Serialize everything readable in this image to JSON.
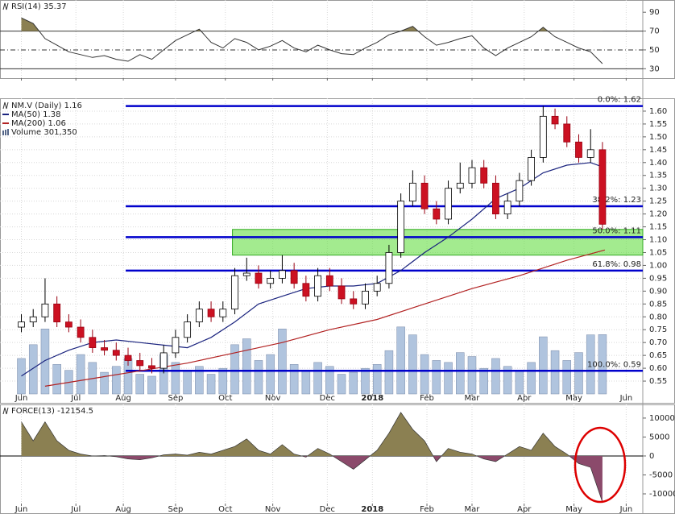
{
  "chart_data": [
    {
      "type": "line",
      "title": "RSI(14) 35.37",
      "color": "#333333",
      "fill_above": 70,
      "fill_color": "#8b8052",
      "x": [
        0,
        5,
        10,
        15,
        20,
        25,
        30,
        35,
        40,
        45,
        50,
        55,
        60,
        65,
        70,
        75,
        80,
        85,
        90,
        95,
        100,
        105,
        110,
        115,
        120,
        125,
        130,
        135,
        140,
        145,
        150,
        155,
        160,
        165,
        170,
        175,
        180,
        185,
        190,
        195,
        200,
        205,
        210,
        215,
        220,
        225,
        230,
        235,
        240,
        245
      ],
      "values": [
        84,
        78,
        62,
        55,
        48,
        45,
        42,
        44,
        40,
        38,
        45,
        40,
        50,
        60,
        66,
        72,
        58,
        52,
        62,
        58,
        50,
        54,
        60,
        52,
        48,
        55,
        50,
        46,
        45,
        52,
        58,
        66,
        70,
        75,
        64,
        55,
        58,
        62,
        65,
        52,
        44,
        52,
        58,
        64,
        74,
        64,
        58,
        52,
        48,
        35.37
      ],
      "levels": [
        {
          "value": 70,
          "style": "solid"
        },
        {
          "value": 50,
          "style": "dashdot"
        },
        {
          "value": 30,
          "style": "solid"
        }
      ],
      "xlim": [
        -9,
        262
      ],
      "ylim": [
        20,
        103
      ],
      "yticks": [
        30,
        50,
        70,
        90
      ]
    },
    {
      "type": "candlestick",
      "title": "NM.V (Daily) 1.16",
      "x": [
        0,
        5,
        10,
        15,
        20,
        25,
        30,
        35,
        40,
        45,
        50,
        55,
        60,
        65,
        70,
        75,
        80,
        85,
        90,
        95,
        100,
        105,
        110,
        115,
        120,
        125,
        130,
        135,
        140,
        145,
        150,
        155,
        160,
        165,
        170,
        175,
        180,
        185,
        190,
        195,
        200,
        205,
        210,
        215,
        220,
        225,
        230,
        235,
        240,
        245
      ],
      "open": [
        0.76,
        0.78,
        0.8,
        0.85,
        0.78,
        0.76,
        0.72,
        0.68,
        0.67,
        0.65,
        0.63,
        0.61,
        0.6,
        0.66,
        0.72,
        0.78,
        0.83,
        0.8,
        0.83,
        0.96,
        0.97,
        0.93,
        0.95,
        0.98,
        0.93,
        0.88,
        0.96,
        0.92,
        0.87,
        0.85,
        0.9,
        0.93,
        1.05,
        1.25,
        1.32,
        1.22,
        1.18,
        1.3,
        1.32,
        1.38,
        1.32,
        1.2,
        1.25,
        1.33,
        1.42,
        1.58,
        1.55,
        1.48,
        1.42,
        1.45
      ],
      "high": [
        0.81,
        0.83,
        0.95,
        0.88,
        0.81,
        0.79,
        0.75,
        0.71,
        0.7,
        0.68,
        0.66,
        0.64,
        0.69,
        0.75,
        0.81,
        0.86,
        0.86,
        0.86,
        0.99,
        1.03,
        1.0,
        0.98,
        1.04,
        1.01,
        0.96,
        0.99,
        0.99,
        0.95,
        0.9,
        0.93,
        0.96,
        1.08,
        1.28,
        1.37,
        1.35,
        1.25,
        1.33,
        1.4,
        1.41,
        1.41,
        1.35,
        1.28,
        1.36,
        1.45,
        1.62,
        1.61,
        1.58,
        1.51,
        1.53,
        1.48
      ],
      "low": [
        0.74,
        0.76,
        0.78,
        0.76,
        0.74,
        0.7,
        0.66,
        0.65,
        0.63,
        0.61,
        0.59,
        0.58,
        0.58,
        0.64,
        0.7,
        0.76,
        0.78,
        0.78,
        0.81,
        0.94,
        0.91,
        0.91,
        0.93,
        0.91,
        0.86,
        0.86,
        0.9,
        0.85,
        0.83,
        0.83,
        0.88,
        0.91,
        1.03,
        1.23,
        1.2,
        1.16,
        1.16,
        1.28,
        1.3,
        1.3,
        1.18,
        1.18,
        1.23,
        1.31,
        1.4,
        1.53,
        1.46,
        1.4,
        1.4,
        1.14
      ],
      "close": [
        0.78,
        0.8,
        0.85,
        0.78,
        0.76,
        0.72,
        0.68,
        0.67,
        0.65,
        0.63,
        0.61,
        0.6,
        0.66,
        0.72,
        0.78,
        0.83,
        0.8,
        0.83,
        0.96,
        0.97,
        0.93,
        0.95,
        0.98,
        0.93,
        0.88,
        0.96,
        0.92,
        0.87,
        0.85,
        0.9,
        0.93,
        1.05,
        1.25,
        1.32,
        1.22,
        1.18,
        1.3,
        1.32,
        1.38,
        1.32,
        1.2,
        1.25,
        1.33,
        1.42,
        1.58,
        1.55,
        1.48,
        1.42,
        1.45,
        1.16
      ],
      "up_color": "#ffffff",
      "down_color": "#cc1122",
      "volume": {
        "name": "Volume 301,350",
        "color": "#b0c4de",
        "vlim": [
          0,
          1500000
        ],
        "values": [
          180000,
          250000,
          330000,
          150000,
          120000,
          200000,
          160000,
          110000,
          140000,
          180000,
          100000,
          90000,
          200000,
          160000,
          120000,
          140000,
          100000,
          130000,
          250000,
          280000,
          170000,
          200000,
          330000,
          150000,
          120000,
          160000,
          140000,
          100000,
          110000,
          130000,
          150000,
          220000,
          340000,
          300000,
          200000,
          170000,
          160000,
          210000,
          190000,
          130000,
          180000,
          140000,
          120000,
          160000,
          290000,
          220000,
          170000,
          210000,
          300000,
          301350
        ]
      },
      "series": [
        {
          "name": "MA(50) 1.38",
          "color": "#1a237e",
          "x": [
            0,
            10,
            20,
            30,
            40,
            50,
            60,
            70,
            80,
            90,
            100,
            110,
            120,
            130,
            140,
            150,
            160,
            170,
            180,
            190,
            200,
            210,
            220,
            230,
            240,
            246
          ],
          "values": [
            0.57,
            0.63,
            0.67,
            0.7,
            0.71,
            0.7,
            0.69,
            0.68,
            0.72,
            0.78,
            0.85,
            0.88,
            0.91,
            0.92,
            0.92,
            0.93,
            0.98,
            1.05,
            1.11,
            1.18,
            1.26,
            1.3,
            1.36,
            1.39,
            1.4,
            1.38
          ]
        },
        {
          "name": "MA(200) 1.06",
          "color": "#b22222",
          "x": [
            10,
            30,
            50,
            70,
            90,
            110,
            130,
            150,
            170,
            190,
            210,
            230,
            246
          ],
          "values": [
            0.53,
            0.56,
            0.59,
            0.62,
            0.66,
            0.7,
            0.75,
            0.79,
            0.85,
            0.91,
            0.96,
            1.02,
            1.06
          ]
        }
      ],
      "fib_start": 44,
      "fib_color": "#0000cc",
      "fib": [
        {
          "value": 1.62,
          "label": "0.0%: 1.62"
        },
        {
          "value": 1.23,
          "label": "38.2%: 1.23"
        },
        {
          "value": 1.11,
          "label": "50.0%: 1.11"
        },
        {
          "value": 0.98,
          "label": "61.8%: 0.98"
        },
        {
          "value": 0.59,
          "label": "100.0%: 0.59"
        }
      ],
      "zone": {
        "x": [
          89,
          262
        ],
        "y": [
          1.04,
          1.14
        ],
        "color": "#66dd44"
      },
      "xlim": [
        -9,
        262
      ],
      "ylim": [
        0.5,
        1.65
      ],
      "yticks": [
        {
          "value": 0.55,
          "label": "0.55"
        },
        {
          "value": 0.6,
          "label": "0.60"
        },
        {
          "value": 0.65,
          "label": "0.65"
        },
        {
          "value": 0.7,
          "label": "0.70"
        },
        {
          "value": 0.75,
          "label": "0.75"
        },
        {
          "value": 0.8,
          "label": "0.80"
        },
        {
          "value": 0.85,
          "label": "0.85"
        },
        {
          "value": 0.9,
          "label": "0.90"
        },
        {
          "value": 0.95,
          "label": "0.95"
        },
        {
          "value": 1.0,
          "label": "1.00"
        },
        {
          "value": 1.05,
          "label": "1.05"
        },
        {
          "value": 1.1,
          "label": "1.10"
        },
        {
          "value": 1.15,
          "label": "1.15"
        },
        {
          "value": 1.2,
          "label": "1.20"
        },
        {
          "value": 1.25,
          "label": "1.25"
        },
        {
          "value": 1.3,
          "label": "1.30"
        },
        {
          "value": 1.35,
          "label": "1.35"
        },
        {
          "value": 1.4,
          "label": "1.40"
        },
        {
          "value": 1.45,
          "label": "1.45"
        },
        {
          "value": 1.5,
          "label": "1.50"
        },
        {
          "value": 1.55,
          "label": "1.55"
        },
        {
          "value": 1.6,
          "label": "1.60"
        }
      ],
      "xticks": [
        {
          "value": 0,
          "label": "Jun"
        },
        {
          "value": 23,
          "label": "Jul"
        },
        {
          "value": 43,
          "label": "Aug"
        },
        {
          "value": 65,
          "label": "Sep"
        },
        {
          "value": 86,
          "label": "Oct"
        },
        {
          "value": 106,
          "label": "Nov"
        },
        {
          "value": 129,
          "label": "Dec"
        },
        {
          "value": 148,
          "label": "2018"
        },
        {
          "value": 171,
          "label": "Feb"
        },
        {
          "value": 190,
          "label": "Mar"
        },
        {
          "value": 212,
          "label": "Apr"
        },
        {
          "value": 233,
          "label": "May"
        },
        {
          "value": 255,
          "label": "Jun"
        }
      ]
    },
    {
      "type": "area",
      "title": "FORCE(13) -12154.5",
      "pos_color": "#8b8052",
      "neg_color": "#8b4a6b",
      "x": [
        0,
        5,
        10,
        15,
        20,
        25,
        30,
        35,
        40,
        45,
        50,
        55,
        60,
        65,
        70,
        75,
        80,
        85,
        90,
        95,
        100,
        105,
        110,
        115,
        120,
        125,
        130,
        135,
        140,
        145,
        150,
        155,
        160,
        165,
        170,
        175,
        180,
        185,
        190,
        195,
        200,
        205,
        210,
        215,
        220,
        225,
        230,
        235,
        240,
        245
      ],
      "values": [
        9000,
        4000,
        9000,
        4000,
        1500,
        500,
        0,
        100,
        -200,
        -800,
        -1000,
        -500,
        300,
        500,
        200,
        1000,
        500,
        1500,
        2500,
        4500,
        1500,
        500,
        3000,
        500,
        -300,
        2000,
        500,
        -1500,
        -3500,
        -1000,
        1500,
        6000,
        11500,
        7000,
        4000,
        -1500,
        2000,
        1000,
        500,
        -800,
        -1500,
        500,
        2500,
        1500,
        6000,
        2500,
        500,
        -2000,
        -3000,
        -12154.5
      ],
      "xlim": [
        -9,
        262
      ],
      "ylim": [
        -12550,
        13600
      ],
      "yticks": [
        -10000,
        -5000,
        0,
        5000,
        10000
      ],
      "xticks": [
        {
          "value": 0,
          "label": "Jun"
        },
        {
          "value": 23,
          "label": "Jul"
        },
        {
          "value": 43,
          "label": "Aug"
        },
        {
          "value": 65,
          "label": "Sep"
        },
        {
          "value": 86,
          "label": "Oct"
        },
        {
          "value": 106,
          "label": "Nov"
        },
        {
          "value": 129,
          "label": "Dec"
        },
        {
          "value": 148,
          "label": "2018"
        },
        {
          "value": 171,
          "label": "Feb"
        },
        {
          "value": 190,
          "label": "Mar"
        },
        {
          "value": 212,
          "label": "Apr"
        },
        {
          "value": 233,
          "label": "May"
        },
        {
          "value": 255,
          "label": "Jun"
        }
      ]
    }
  ]
}
